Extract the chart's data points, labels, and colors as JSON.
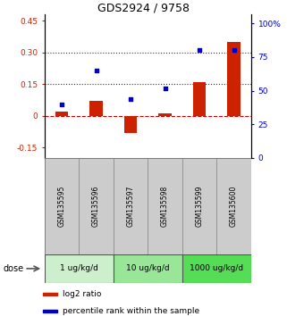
{
  "title": "GDS2924 / 9758",
  "samples": [
    "GSM135595",
    "GSM135596",
    "GSM135597",
    "GSM135598",
    "GSM135599",
    "GSM135600"
  ],
  "log2_ratio": [
    0.02,
    0.07,
    -0.08,
    0.01,
    0.16,
    0.35
  ],
  "percentile_rank": [
    0.4,
    0.65,
    0.44,
    0.52,
    0.8,
    0.8
  ],
  "dose_groups": [
    {
      "label": "1 ug/kg/d",
      "samples": [
        0,
        1
      ],
      "color": "#ccf0cc"
    },
    {
      "label": "10 ug/kg/d",
      "samples": [
        2,
        3
      ],
      "color": "#99e699"
    },
    {
      "label": "1000 ug/kg/d",
      "samples": [
        4,
        5
      ],
      "color": "#55dd55"
    }
  ],
  "bar_color": "#cc2200",
  "dot_color": "#0000cc",
  "ylim_left": [
    -0.2,
    0.48
  ],
  "ylim_right": [
    0,
    1.067
  ],
  "yticks_left": [
    -0.15,
    0,
    0.15,
    0.3,
    0.45
  ],
  "yticks_right": [
    0,
    0.25,
    0.5,
    0.75,
    1.0
  ],
  "ytick_labels_right": [
    "0",
    "25",
    "50",
    "75",
    "100%"
  ],
  "ytick_labels_left": [
    "-0.15",
    "0",
    "0.15",
    "0.30",
    "0.45"
  ],
  "hlines": [
    0.15,
    0.3
  ],
  "hline_zero_color": "#cc0000",
  "hline_dotted_color": "#333333",
  "sample_box_color": "#cccccc",
  "dose_label": "dose"
}
